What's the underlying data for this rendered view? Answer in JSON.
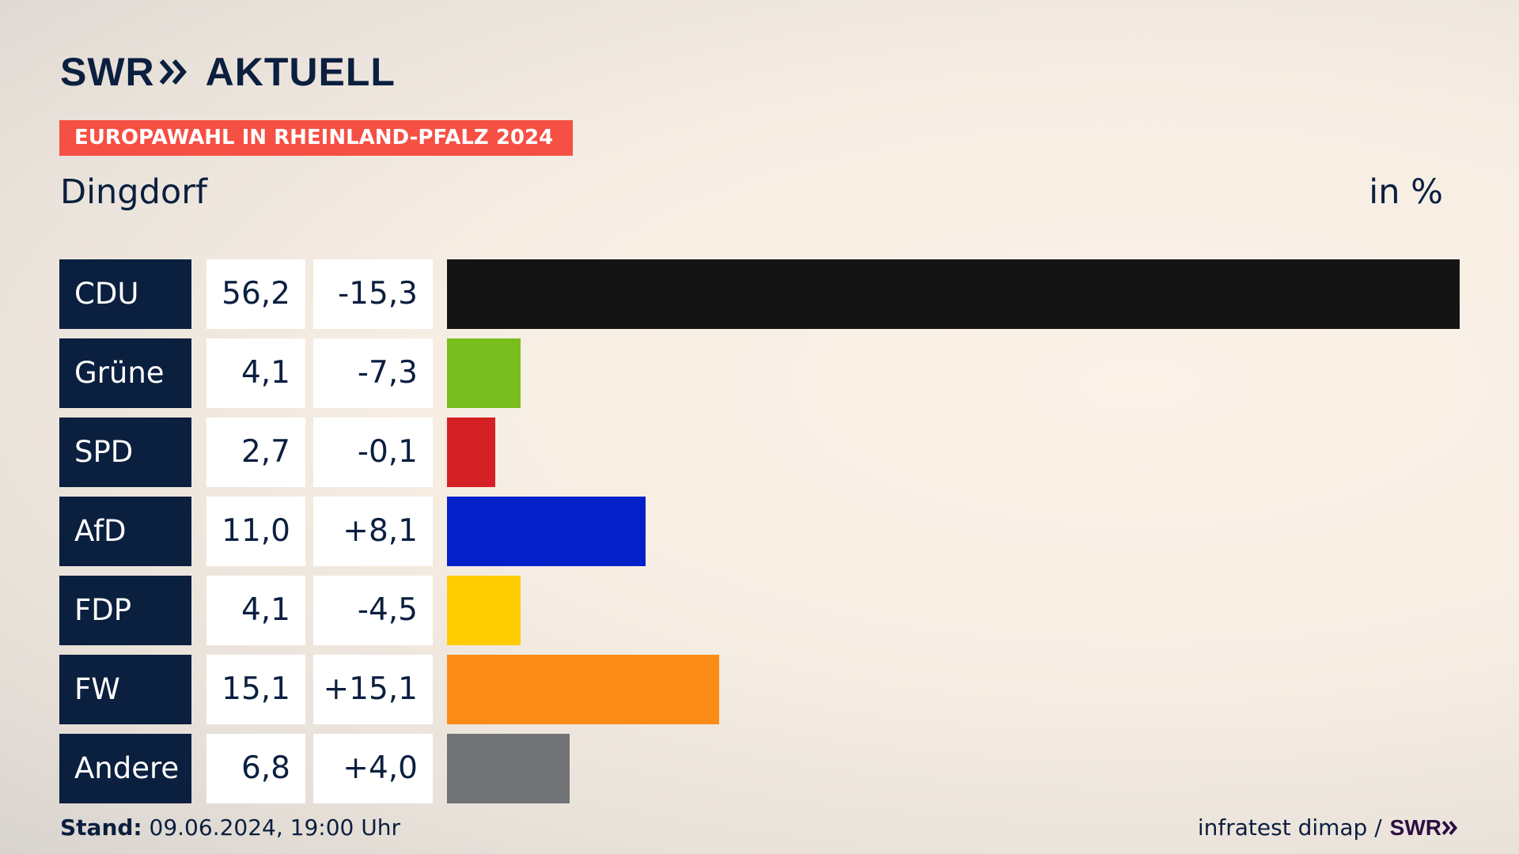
{
  "brand": {
    "part1": "SWR",
    "part2": "AKTUELL"
  },
  "banner": "EUROPAWAHL IN RHEINLAND-PFALZ 2024",
  "place": "Dingdorf",
  "unit": "in %",
  "footer": {
    "stand_label": "Stand:",
    "stand_value": "09.06.2024, 19:00 Uhr",
    "source": "infratest dimap /",
    "source_brand": "SWR"
  },
  "chart_data": {
    "type": "bar",
    "orientation": "horizontal",
    "categories": [
      "CDU",
      "Grüne",
      "SPD",
      "AfD",
      "FDP",
      "FW",
      "Andere"
    ],
    "values": [
      56.2,
      4.1,
      2.7,
      11.0,
      4.1,
      15.1,
      6.8
    ],
    "value_labels": [
      "56,2",
      "4,1",
      "2,7",
      "11,0",
      "4,1",
      "15,1",
      "6,8"
    ],
    "diff_labels": [
      "-15,3",
      "-7,3",
      "-0,1",
      "+8,1",
      "-4,5",
      "+15,1",
      "+4,0"
    ],
    "colors": [
      "#141414",
      "#79bd1f",
      "#d52125",
      "#0420c9",
      "#ffcc00",
      "#fc8c15",
      "#707275"
    ],
    "title": "Dingdorf",
    "ylabel": "in %"
  }
}
